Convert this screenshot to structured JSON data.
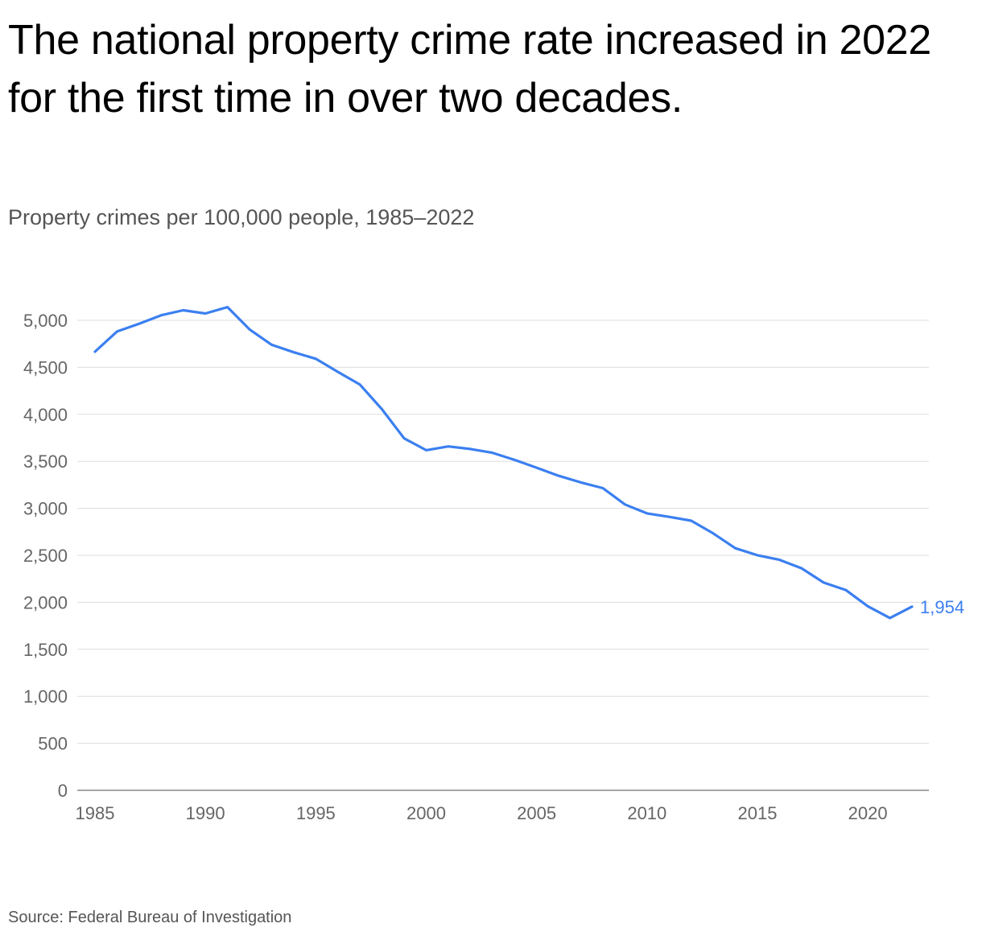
{
  "header": {
    "title": "The national property crime rate increased in 2022 for the first time in over two decades.",
    "subtitle": "Property crimes per 100,000 people, 1985–2022"
  },
  "footer": {
    "source": "Source: Federal Bureau of Investigation"
  },
  "colors": {
    "line": "#3b7ff0",
    "gridline": "#dddddd",
    "axis": "#888888",
    "tick_text": "#666666"
  },
  "chart_data": {
    "type": "line",
    "title": "The national property crime rate increased in 2022 for the first time in over two decades.",
    "subtitle": "Property crimes per 100,000 people, 1985–2022",
    "xlabel": "",
    "ylabel": "",
    "x": [
      1985,
      1986,
      1987,
      1988,
      1989,
      1990,
      1991,
      1992,
      1993,
      1994,
      1995,
      1996,
      1997,
      1998,
      1999,
      2000,
      2001,
      2002,
      2003,
      2004,
      2005,
      2006,
      2007,
      2008,
      2009,
      2010,
      2011,
      2012,
      2013,
      2014,
      2015,
      2016,
      2017,
      2018,
      2019,
      2020,
      2021,
      2022
    ],
    "series": [
      {
        "values": [
          4666,
          4881,
          4963,
          5054,
          5107,
          5073,
          5140,
          4903,
          4740,
          4660,
          4591,
          4451,
          4316,
          4053,
          3744,
          3618,
          3658,
          3631,
          3591,
          3515,
          3432,
          3346,
          3276,
          3215,
          3041,
          2946,
          2909,
          2868,
          2733,
          2575,
          2501,
          2452,
          2362,
          2210,
          2131,
          1958,
          1833,
          1954
        ]
      }
    ],
    "end_label": "1,954",
    "xlim": [
      1985,
      2022
    ],
    "ylim": [
      0,
      5000
    ],
    "x_ticks": [
      1985,
      1990,
      1995,
      2000,
      2005,
      2010,
      2015,
      2020
    ],
    "x_tick_labels": [
      "1985",
      "1990",
      "1995",
      "2000",
      "2005",
      "2010",
      "2015",
      "2020"
    ],
    "y_ticks": [
      0,
      500,
      1000,
      1500,
      2000,
      2500,
      3000,
      3500,
      4000,
      4500,
      5000
    ],
    "y_tick_labels": [
      "0",
      "500",
      "1,000",
      "1,500",
      "2,000",
      "2,500",
      "3,000",
      "3,500",
      "4,000",
      "4,500",
      "5,000"
    ],
    "grid": true,
    "legend": "none"
  }
}
